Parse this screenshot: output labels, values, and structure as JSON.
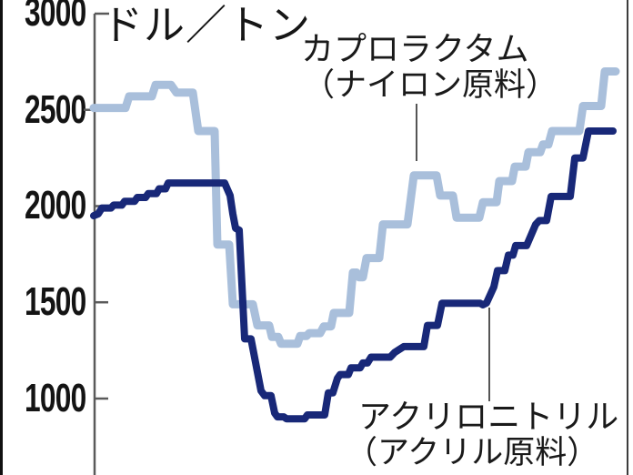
{
  "chart_data": {
    "type": "line",
    "unit_label": "ドル／トン",
    "y_axis": {
      "ticks": [
        3000,
        2500,
        2000,
        1500,
        1000
      ],
      "range_shown": [
        900,
        3000
      ],
      "grid": false
    },
    "x_axis": {
      "tick_labels_visible": false
    },
    "legend_position": "inline-annotations-with-leader-lines",
    "series": [
      {
        "name": "カプロラクタム",
        "subtitle": "（ナイロン原料）",
        "color": "#a9bfdb",
        "stroke_width": 9,
        "points": [
          [
            103,
            2510
          ],
          [
            138,
            2510
          ],
          [
            142,
            2570
          ],
          [
            167,
            2570
          ],
          [
            171,
            2630
          ],
          [
            188,
            2630
          ],
          [
            194,
            2590
          ],
          [
            212,
            2590
          ],
          [
            218,
            2390
          ],
          [
            236,
            2390
          ],
          [
            239,
            1800
          ],
          [
            252,
            1800
          ],
          [
            256,
            1490
          ],
          [
            278,
            1490
          ],
          [
            283,
            1380
          ],
          [
            296,
            1380
          ],
          [
            299,
            1320
          ],
          [
            306,
            1320
          ],
          [
            309,
            1285
          ],
          [
            327,
            1285
          ],
          [
            330,
            1325
          ],
          [
            337,
            1325
          ],
          [
            340,
            1340
          ],
          [
            352,
            1340
          ],
          [
            356,
            1375
          ],
          [
            364,
            1375
          ],
          [
            367,
            1445
          ],
          [
            384,
            1445
          ],
          [
            388,
            1655
          ],
          [
            392,
            1655
          ],
          [
            395,
            1630
          ],
          [
            399,
            1630
          ],
          [
            403,
            1730
          ],
          [
            417,
            1730
          ],
          [
            421,
            1905
          ],
          [
            448,
            1905
          ],
          [
            455,
            2160
          ],
          [
            480,
            2160
          ],
          [
            484,
            2055
          ],
          [
            498,
            2055
          ],
          [
            502,
            1940
          ],
          [
            527,
            1940
          ],
          [
            531,
            2020
          ],
          [
            546,
            2020
          ],
          [
            549,
            2130
          ],
          [
            563,
            2130
          ],
          [
            566,
            2205
          ],
          [
            578,
            2205
          ],
          [
            581,
            2280
          ],
          [
            594,
            2280
          ],
          [
            597,
            2320
          ],
          [
            603,
            2320
          ],
          [
            607,
            2390
          ],
          [
            637,
            2390
          ],
          [
            641,
            2520
          ],
          [
            661,
            2520
          ],
          [
            665,
            2700
          ],
          [
            677,
            2700
          ]
        ]
      },
      {
        "name": "アクリロニトリル",
        "subtitle": "（アクリル原料）",
        "color": "#182878",
        "stroke_width": 8,
        "points": [
          [
            103,
            1950
          ],
          [
            108,
            1960
          ],
          [
            112,
            1990
          ],
          [
            122,
            1990
          ],
          [
            125,
            2005
          ],
          [
            134,
            2005
          ],
          [
            137,
            2025
          ],
          [
            148,
            2025
          ],
          [
            151,
            2045
          ],
          [
            160,
            2045
          ],
          [
            163,
            2065
          ],
          [
            172,
            2065
          ],
          [
            175,
            2090
          ],
          [
            182,
            2090
          ],
          [
            185,
            2120
          ],
          [
            247,
            2120
          ],
          [
            253,
            2055
          ],
          [
            256,
            1960
          ],
          [
            259,
            1885
          ],
          [
            263,
            1875
          ],
          [
            269,
            1310
          ],
          [
            276,
            1310
          ],
          [
            287,
            1040
          ],
          [
            291,
            1015
          ],
          [
            298,
            1015
          ],
          [
            302,
            925
          ],
          [
            305,
            905
          ],
          [
            312,
            905
          ],
          [
            315,
            895
          ],
          [
            335,
            895
          ],
          [
            338,
            915
          ],
          [
            357,
            915
          ],
          [
            361,
            1030
          ],
          [
            366,
            1030
          ],
          [
            371,
            1105
          ],
          [
            374,
            1125
          ],
          [
            383,
            1125
          ],
          [
            386,
            1160
          ],
          [
            396,
            1160
          ],
          [
            399,
            1185
          ],
          [
            404,
            1185
          ],
          [
            408,
            1215
          ],
          [
            429,
            1215
          ],
          [
            434,
            1240
          ],
          [
            444,
            1270
          ],
          [
            466,
            1270
          ],
          [
            470,
            1380
          ],
          [
            481,
            1380
          ],
          [
            486,
            1495
          ],
          [
            528,
            1495
          ],
          [
            531,
            1487
          ],
          [
            535,
            1497
          ],
          [
            543,
            1580
          ],
          [
            547,
            1665
          ],
          [
            555,
            1665
          ],
          [
            559,
            1745
          ],
          [
            564,
            1745
          ],
          [
            567,
            1795
          ],
          [
            579,
            1795
          ],
          [
            589,
            1905
          ],
          [
            593,
            1925
          ],
          [
            601,
            1925
          ],
          [
            606,
            2050
          ],
          [
            627,
            2050
          ],
          [
            632,
            2250
          ],
          [
            641,
            2250
          ],
          [
            647,
            2390
          ],
          [
            674,
            2390
          ]
        ]
      }
    ]
  },
  "y_tick_labels": [
    "3000",
    "2500",
    "2000",
    "1500",
    "1000"
  ],
  "annotations": {
    "caprolactam": {
      "line1": "カプロラクタム",
      "line2": "（ナイロン原料）"
    },
    "acrylonitrile": {
      "line1": "アクリロニトリル",
      "line2": "（アクリル原料）"
    }
  },
  "colors": {
    "caprolactam_line": "#a9bfdb",
    "acrylonitrile_line": "#182878",
    "axis": "#5a5a5a",
    "leader": "#555555",
    "text": "#141414",
    "background": "#ffffff"
  }
}
